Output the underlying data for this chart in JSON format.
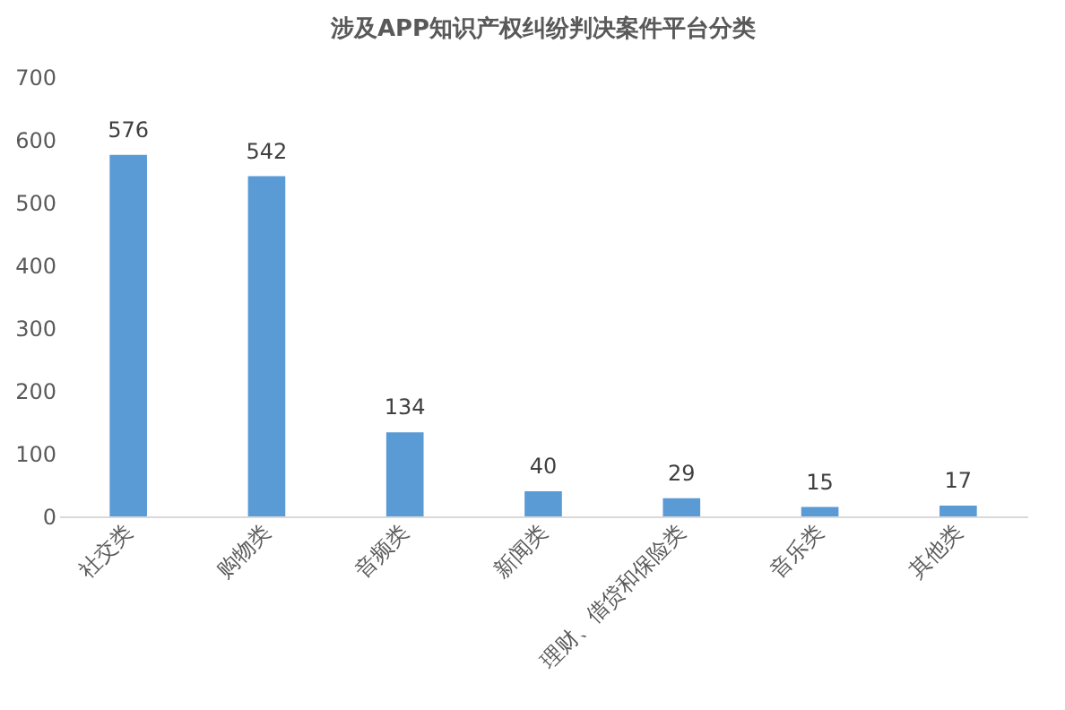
{
  "chart_data": {
    "type": "bar",
    "title": "涉及APP知识产权纠纷判决案件平台分类",
    "categories": [
      "社交类",
      "购物类",
      "音频类",
      "新闻类",
      "理财、借贷和保险类",
      "音乐类",
      "其他类"
    ],
    "values": [
      576,
      542,
      134,
      40,
      29,
      15,
      17
    ],
    "color": "#5b9bd5",
    "data_labels": true,
    "ylim": [
      0,
      700
    ],
    "yticks": [
      0,
      100,
      200,
      300,
      400,
      500,
      600,
      700
    ],
    "grid": false
  }
}
